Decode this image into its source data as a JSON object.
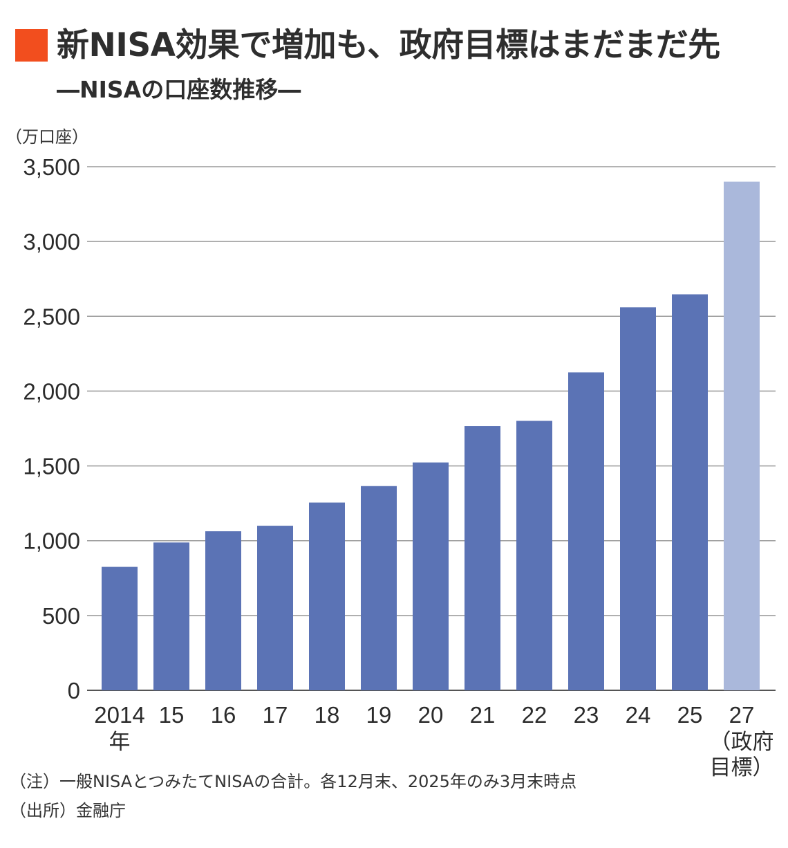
{
  "header": {
    "accent_color": "#F24E1E",
    "title": "新NISA効果で増加も、政府目標はまだまだ先",
    "subtitle": "―NISAの口座数推移―"
  },
  "chart_data": {
    "type": "bar",
    "title": "新NISA効果で増加も、政府目標はまだまだ先",
    "subtitle": "―NISAの口座数推移―",
    "y_unit_label": "（万口座）",
    "ylim": [
      0,
      3500
    ],
    "y_ticks": [
      0,
      500,
      1000,
      1500,
      2000,
      2500,
      3000,
      3500
    ],
    "y_tick_labels": [
      "0",
      "500",
      "1,000",
      "1,500",
      "2,000",
      "2,500",
      "3,000",
      "3,500"
    ],
    "grid": true,
    "categories": [
      "2014",
      "15",
      "16",
      "17",
      "18",
      "19",
      "20",
      "21",
      "22",
      "23",
      "24",
      "25",
      "27"
    ],
    "category_sublabels": [
      "年",
      "",
      "",
      "",
      "",
      "",
      "",
      "",
      "",
      "",
      "",
      "",
      "（政府\n目標）"
    ],
    "values": [
      825,
      988,
      1063,
      1100,
      1255,
      1365,
      1523,
      1766,
      1801,
      2125,
      2560,
      2647,
      3400
    ],
    "bar_colors": [
      "#5B73B5",
      "#5B73B5",
      "#5B73B5",
      "#5B73B5",
      "#5B73B5",
      "#5B73B5",
      "#5B73B5",
      "#5B73B5",
      "#5B73B5",
      "#5B73B5",
      "#5B73B5",
      "#5B73B5",
      "#AAB8DB"
    ],
    "grid_color": "#9A9A9A",
    "axis_color": "#555555"
  },
  "footer": {
    "note": "（注）一般NISAとつみたてNISAの合計。各12月末、2025年のみ3月末時点",
    "source": "（出所）金融庁"
  }
}
